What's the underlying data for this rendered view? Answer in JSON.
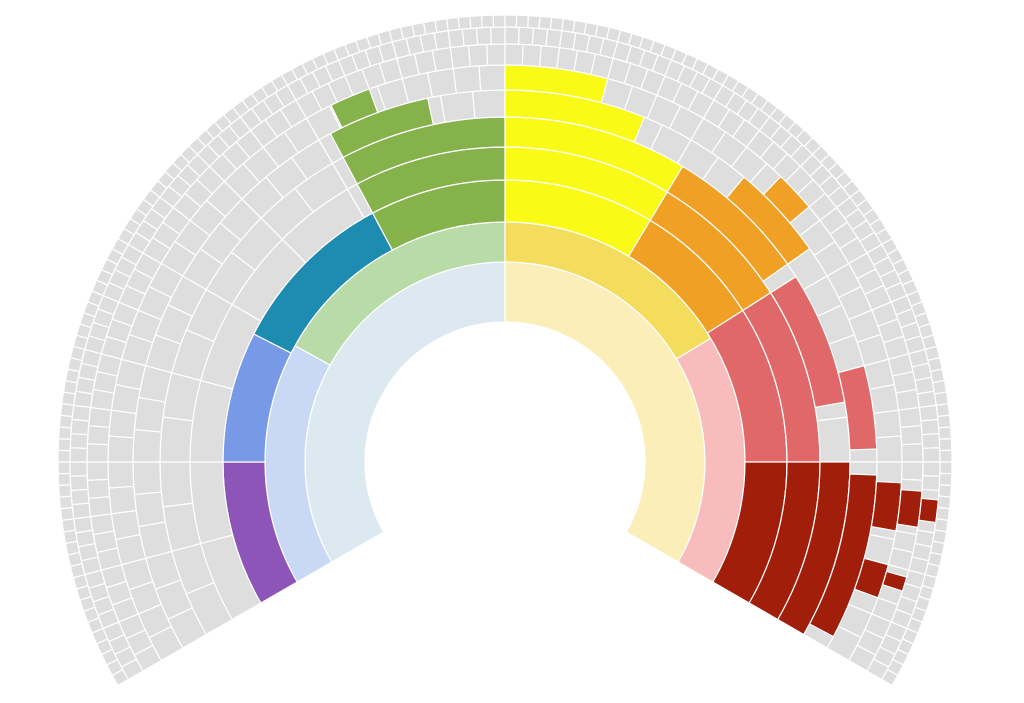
{
  "chart_data": {
    "type": "sunburst",
    "start_angle": -120,
    "end_angle": 120,
    "levels": [
      {
        "segments": [
          {
            "value": 120,
            "color": "#dce9f0"
          },
          {
            "value": 120,
            "color": "#fbeeb8"
          }
        ]
      },
      {
        "segments": [
          {
            "value": 59,
            "color": "#c9d8f5"
          },
          {
            "value": 61,
            "color": "#b8dba8"
          },
          {
            "value": 59,
            "color": "#f4dc5c"
          },
          {
            "value": 61,
            "color": "#f8bcbc"
          }
        ]
      },
      {
        "segments": [
          {
            "value": 30,
            "color": "#8e55b8"
          },
          {
            "value": 27,
            "color": "#7799e6"
          },
          {
            "value": 35,
            "color": "#1e8cb0"
          },
          {
            "value": 28,
            "color": "#86b24c"
          },
          {
            "value": 31,
            "color": "#fafa17"
          },
          {
            "value": 26.5,
            "color": "#f0a024"
          },
          {
            "value": 32.5,
            "color": "#e06868"
          },
          {
            "value": 30,
            "color": "#a01e0a"
          }
        ]
      },
      {
        "divisions": 16,
        "color": "#dedede",
        "highlights": [
          {
            "start": -28,
            "end": 0,
            "color": "#86b24c"
          },
          {
            "start": 0,
            "end": 31,
            "color": "#fafa17"
          },
          {
            "start": 31,
            "end": 57.5,
            "color": "#f0a024"
          },
          {
            "start": 57.5,
            "end": 90,
            "color": "#e06868"
          },
          {
            "start": 90,
            "end": 120,
            "color": "#a01e0a"
          }
        ]
      },
      {
        "divisions": 32,
        "color": "#dedede",
        "highlights": [
          {
            "start": -28,
            "end": 0,
            "color": "#86b24c"
          },
          {
            "start": 0,
            "end": 31,
            "color": "#fafa17"
          },
          {
            "start": 31,
            "end": 55,
            "color": "#f0a024"
          },
          {
            "start": 57.5,
            "end": 80,
            "color": "#e06868"
          },
          {
            "start": 90,
            "end": 120,
            "color": "#a01e0a"
          }
        ]
      },
      {
        "divisions": 48,
        "color": "#dedede",
        "highlights": [
          {
            "start": -28,
            "end": -12,
            "color": "#86b24c"
          },
          {
            "start": 0,
            "end": 22,
            "color": "#fafa17"
          },
          {
            "start": 40,
            "end": 55,
            "color": "#f0a024"
          },
          {
            "start": 75,
            "end": 88,
            "color": "#e06868"
          },
          {
            "start": 92,
            "end": 118,
            "color": "#a01e0a"
          }
        ]
      },
      {
        "divisions": 64,
        "color": "#dedede",
        "highlights": [
          {
            "start": -26,
            "end": -20,
            "color": "#86b24c"
          },
          {
            "start": 0,
            "end": 15,
            "color": "#fafa17"
          },
          {
            "start": 44,
            "end": 50,
            "color": "#f0a024"
          },
          {
            "start": 93,
            "end": 100,
            "color": "#a01e0a"
          },
          {
            "start": 105,
            "end": 110,
            "color": "#a01e0a"
          }
        ]
      },
      {
        "divisions": 96,
        "color": "#dedede",
        "highlights": [
          {
            "start": 94,
            "end": 99,
            "color": "#a01e0a"
          },
          {
            "start": 106,
            "end": 108,
            "color": "#a01e0a"
          }
        ]
      },
      {
        "divisions": 128,
        "color": "#dedede",
        "highlights": [
          {
            "start": 95,
            "end": 98,
            "color": "#a01e0a"
          }
        ]
      },
      {
        "divisions": 160,
        "color": "#dedede",
        "highlights": []
      }
    ]
  }
}
